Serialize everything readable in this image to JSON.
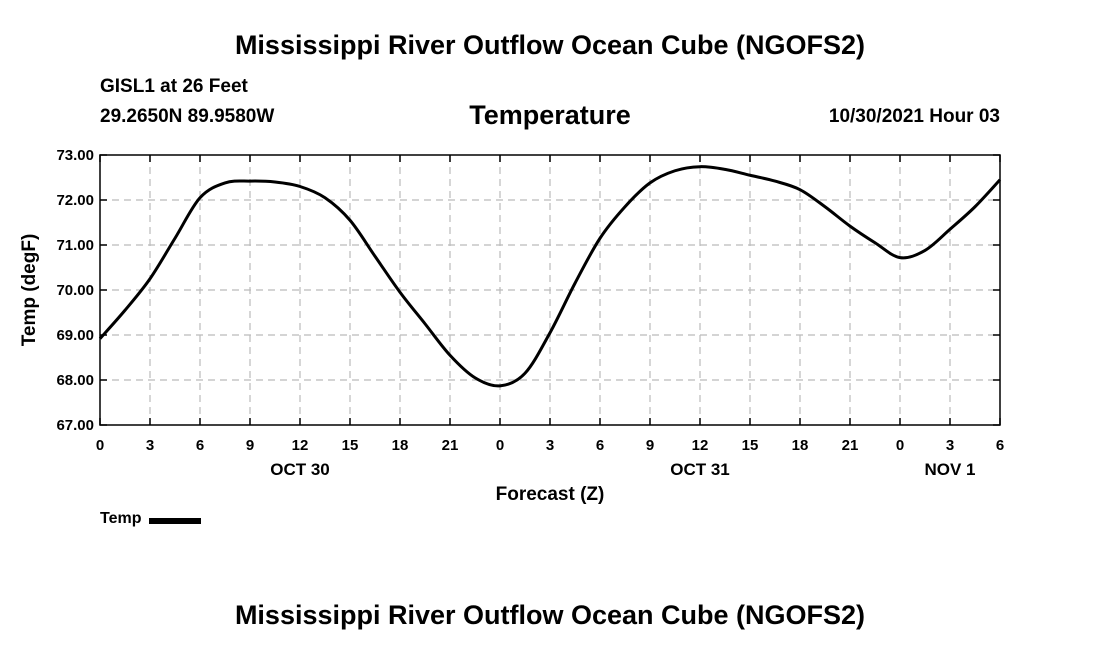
{
  "header": {
    "title": "Mississippi River Outflow Ocean Cube (NGOFS2)",
    "station": "GISL1 at 26 Feet",
    "coords": "29.2650N  89.9580W",
    "date": "10/30/2021 Hour 03"
  },
  "footer": {
    "title": "Mississippi River Outflow Ocean Cube (NGOFS2)"
  },
  "legend": {
    "label": "Temp"
  },
  "chart_data": {
    "type": "line",
    "title": "Temperature",
    "xlabel": "Forecast (Z)",
    "ylabel": "Temp (degF)",
    "xlim": [
      0,
      54
    ],
    "ylim": [
      67,
      73
    ],
    "x_ticks": [
      0,
      3,
      6,
      9,
      12,
      15,
      18,
      21,
      24,
      27,
      30,
      33,
      36,
      39,
      42,
      45,
      48,
      51,
      54
    ],
    "x_tick_labels": [
      "0",
      "3",
      "6",
      "9",
      "12",
      "15",
      "18",
      "21",
      "0",
      "3",
      "6",
      "9",
      "12",
      "15",
      "18",
      "21",
      "0",
      "3",
      "6"
    ],
    "y_ticks": [
      67,
      68,
      69,
      70,
      71,
      72,
      73
    ],
    "y_tick_labels": [
      "67.00",
      "68.00",
      "69.00",
      "70.00",
      "71.00",
      "72.00",
      "73.00"
    ],
    "date_labels": [
      {
        "x": 12,
        "label": "OCT 30"
      },
      {
        "x": 36,
        "label": "OCT 31"
      },
      {
        "x": 51,
        "label": "NOV 1"
      }
    ],
    "grid": true,
    "series": [
      {
        "name": "Temp",
        "x": [
          0,
          1.5,
          3,
          4.5,
          6,
          7.5,
          9,
          10.5,
          12,
          13.5,
          15,
          16.5,
          18,
          19.5,
          21,
          22.5,
          24,
          25.5,
          27,
          28.5,
          30,
          31.5,
          33,
          34.5,
          36,
          37.5,
          39,
          40.5,
          42,
          43.5,
          45,
          46.5,
          48,
          49.5,
          51,
          52.5,
          54
        ],
        "values": [
          68.92,
          69.55,
          70.25,
          71.15,
          72.05,
          72.38,
          72.42,
          72.4,
          72.3,
          72.05,
          71.55,
          70.75,
          69.95,
          69.25,
          68.55,
          68.05,
          67.87,
          68.15,
          69.05,
          70.15,
          71.15,
          71.85,
          72.38,
          72.65,
          72.74,
          72.68,
          72.55,
          72.42,
          72.23,
          71.85,
          71.42,
          71.05,
          70.72,
          70.88,
          71.35,
          71.85,
          72.45
        ]
      }
    ]
  }
}
